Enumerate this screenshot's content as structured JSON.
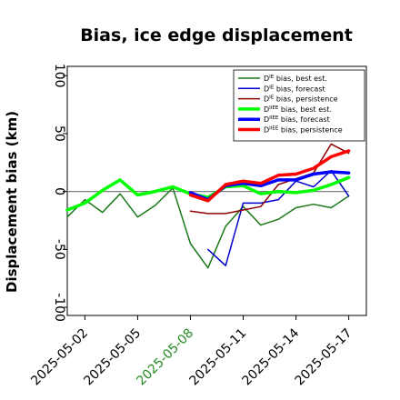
{
  "chart_data": {
    "type": "line",
    "title": "Bias, ice edge displacement",
    "xlabel": "",
    "ylabel": "Displacement bias (km)",
    "ylim": [
      -107,
      108
    ],
    "xlim": [
      "2025-05-01",
      "2025-05-18"
    ],
    "yticks": [
      -100,
      -50,
      0,
      50,
      100
    ],
    "xticks": [
      "2025-05-02",
      "2025-05-05",
      "2025-05-08",
      "2025-05-11",
      "2025-05-14",
      "2025-05-17"
    ],
    "highlighted_xtick": "2025-05-08",
    "highlight_color": "#228B22",
    "zero_line": 0,
    "legend_position": "top-right",
    "grid": false,
    "series": [
      {
        "name": "D^IE bias, best est.",
        "label_base": "D",
        "label_sup": "IE",
        "label_rest": " bias, best est.",
        "color": "#1a7a1a",
        "width": 1.5,
        "x": [
          "2025-05-01",
          "2025-05-02",
          "2025-05-03",
          "2025-05-04",
          "2025-05-05",
          "2025-05-06",
          "2025-05-07",
          "2025-05-08",
          "2025-05-09",
          "2025-05-10",
          "2025-05-11",
          "2025-05-12",
          "2025-05-13",
          "2025-05-14",
          "2025-05-15",
          "2025-05-16",
          "2025-05-17"
        ],
        "values": [
          -22,
          -7,
          -18,
          -2,
          -22,
          -12,
          3,
          -45,
          -66,
          -30,
          -13,
          -29,
          -24,
          -14,
          -11,
          -14,
          -4
        ]
      },
      {
        "name": "D^IE bias, forecast",
        "label_base": "D",
        "label_sup": "IE",
        "label_rest": " bias, forecast",
        "color": "#0000cc",
        "width": 1.5,
        "x": [
          "2025-05-09",
          "2025-05-10",
          "2025-05-11",
          "2025-05-12",
          "2025-05-13",
          "2025-05-14",
          "2025-05-15",
          "2025-05-16",
          "2025-05-17"
        ],
        "values": [
          -50,
          -64,
          -10,
          -10,
          -7,
          9,
          4,
          18,
          -4
        ]
      },
      {
        "name": "D^IE bias, persistence",
        "label_base": "D",
        "label_sup": "IE",
        "label_rest": " bias, persistence",
        "color": "#8b0000",
        "width": 1.5,
        "x": [
          "2025-05-08",
          "2025-05-09",
          "2025-05-10",
          "2025-05-11",
          "2025-05-12",
          "2025-05-13",
          "2025-05-14",
          "2025-05-15",
          "2025-05-16",
          "2025-05-17"
        ],
        "values": [
          -17,
          -19,
          -19,
          -16,
          -13,
          6,
          11,
          16,
          41,
          33
        ]
      },
      {
        "name": "D^IIEE bias, best est.",
        "label_base": "D",
        "label_sup": "IIEE",
        "label_rest": " bias, best est.",
        "color": "#00ff00",
        "width": 3.5,
        "x": [
          "2025-05-01",
          "2025-05-02",
          "2025-05-03",
          "2025-05-04",
          "2025-05-05",
          "2025-05-06",
          "2025-05-07",
          "2025-05-08",
          "2025-05-09",
          "2025-05-10",
          "2025-05-11",
          "2025-05-12",
          "2025-05-13",
          "2025-05-14",
          "2025-05-15",
          "2025-05-16",
          "2025-05-17"
        ],
        "values": [
          -16,
          -10,
          1,
          10,
          -3,
          0,
          4,
          -2,
          -5,
          4,
          5,
          -2,
          0,
          -1,
          1,
          6,
          12
        ]
      },
      {
        "name": "D^IIEE bias, forecast",
        "label_base": "D",
        "label_sup": "IIEE",
        "label_rest": " bias, forecast",
        "color": "#0000ff",
        "width": 3.5,
        "x": [
          "2025-05-08",
          "2025-05-09",
          "2025-05-10",
          "2025-05-11",
          "2025-05-12",
          "2025-05-13",
          "2025-05-14",
          "2025-05-15",
          "2025-05-16",
          "2025-05-17"
        ],
        "values": [
          -1,
          -7,
          5,
          7,
          5,
          10,
          10,
          15,
          17,
          16
        ]
      },
      {
        "name": "D^IIEE bias, persistence",
        "label_base": "D",
        "label_sup": "IIEE",
        "label_rest": " bias, persistence",
        "color": "#ff0000",
        "width": 3.5,
        "x": [
          "2025-05-08",
          "2025-05-09",
          "2025-05-10",
          "2025-05-11",
          "2025-05-12",
          "2025-05-13",
          "2025-05-14",
          "2025-05-15",
          "2025-05-16",
          "2025-05-17"
        ],
        "values": [
          -3,
          -8,
          6,
          9,
          7,
          14,
          15,
          20,
          30,
          35
        ]
      }
    ]
  }
}
